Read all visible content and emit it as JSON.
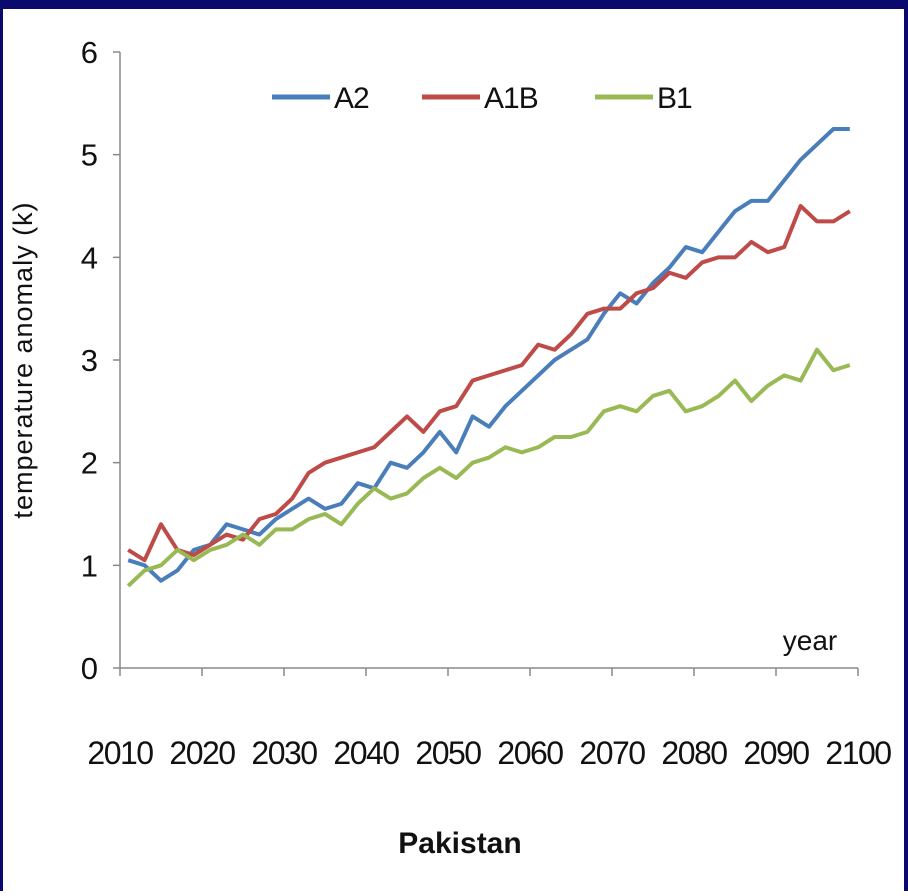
{
  "chart_data": {
    "type": "line",
    "y_label": "temperature anomaly (k)",
    "x_label": "Pakistan",
    "annotation": "year",
    "x": [
      2011,
      2013,
      2015,
      2017,
      2019,
      2021,
      2023,
      2025,
      2027,
      2029,
      2031,
      2033,
      2035,
      2037,
      2039,
      2041,
      2043,
      2045,
      2047,
      2049,
      2051,
      2053,
      2055,
      2057,
      2059,
      2061,
      2063,
      2065,
      2067,
      2069,
      2071,
      2073,
      2075,
      2077,
      2079,
      2081,
      2083,
      2085,
      2087,
      2089,
      2091,
      2093,
      2095,
      2097,
      2099
    ],
    "series": [
      {
        "name": "A2",
        "color": "#4a7ebb",
        "values": [
          1.05,
          1.0,
          0.85,
          0.95,
          1.15,
          1.2,
          1.4,
          1.35,
          1.3,
          1.45,
          1.55,
          1.65,
          1.55,
          1.6,
          1.8,
          1.75,
          2.0,
          1.95,
          2.1,
          2.3,
          2.1,
          2.45,
          2.35,
          2.55,
          2.7,
          2.85,
          3.0,
          3.1,
          3.2,
          3.45,
          3.65,
          3.55,
          3.75,
          3.9,
          4.1,
          4.05,
          4.25,
          4.45,
          4.55,
          4.55,
          4.75,
          4.95,
          5.1,
          5.25,
          5.25
        ]
      },
      {
        "name": "A1B",
        "color": "#be4b48",
        "values": [
          1.15,
          1.05,
          1.4,
          1.15,
          1.1,
          1.2,
          1.3,
          1.25,
          1.45,
          1.5,
          1.65,
          1.9,
          2.0,
          2.05,
          2.1,
          2.15,
          2.3,
          2.45,
          2.3,
          2.5,
          2.55,
          2.8,
          2.85,
          2.9,
          2.95,
          3.15,
          3.1,
          3.25,
          3.45,
          3.5,
          3.5,
          3.65,
          3.7,
          3.85,
          3.8,
          3.95,
          4.0,
          4.0,
          4.15,
          4.05,
          4.1,
          4.5,
          4.35,
          4.35,
          4.45
        ]
      },
      {
        "name": "B1",
        "color": "#98b954",
        "values": [
          0.8,
          0.95,
          1.0,
          1.15,
          1.05,
          1.15,
          1.2,
          1.3,
          1.2,
          1.35,
          1.35,
          1.45,
          1.5,
          1.4,
          1.6,
          1.75,
          1.65,
          1.7,
          1.85,
          1.95,
          1.85,
          2.0,
          2.05,
          2.15,
          2.1,
          2.15,
          2.25,
          2.25,
          2.3,
          2.5,
          2.55,
          2.5,
          2.65,
          2.7,
          2.5,
          2.55,
          2.65,
          2.8,
          2.6,
          2.75,
          2.85,
          2.8,
          3.1,
          2.9,
          2.95
        ]
      }
    ],
    "xlim": [
      2010,
      2100
    ],
    "xticks": [
      2010,
      2020,
      2030,
      2040,
      2050,
      2060,
      2070,
      2080,
      2090,
      2100
    ],
    "ylim": [
      0,
      6
    ],
    "yticks": [
      0,
      1,
      2,
      3,
      4,
      5,
      6
    ],
    "grid": false,
    "legend": "top"
  }
}
